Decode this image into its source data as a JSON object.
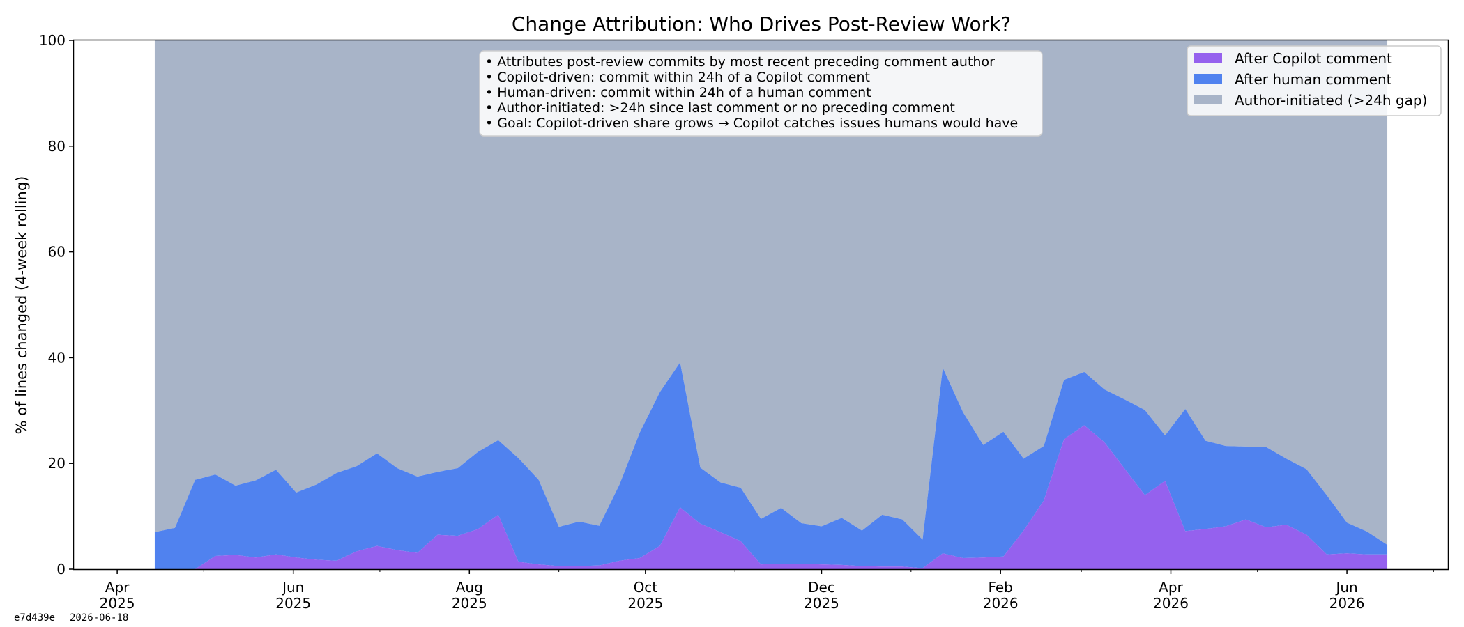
{
  "chart_data": {
    "type": "area",
    "stacked": true,
    "percent_stacked": true,
    "title": "Change Attribution: Who Drives Post-Review Work?",
    "xlabel": "",
    "ylabel": "% of lines changed (4-week rolling)",
    "ylim": [
      0,
      100
    ],
    "yticks": [
      0,
      20,
      40,
      60,
      80,
      100
    ],
    "xlim": [
      "2025-03-17",
      "2026-07-06"
    ],
    "xticks": [
      {
        "date": "2025-04-01",
        "month": "Apr",
        "year": "2025"
      },
      {
        "date": "2025-06-01",
        "month": "Jun",
        "year": "2025"
      },
      {
        "date": "2025-08-01",
        "month": "Aug",
        "year": "2025"
      },
      {
        "date": "2025-10-01",
        "month": "Oct",
        "year": "2025"
      },
      {
        "date": "2025-12-01",
        "month": "Dec",
        "year": "2025"
      },
      {
        "date": "2026-02-01",
        "month": "Feb",
        "year": "2026"
      },
      {
        "date": "2026-04-01",
        "month": "Apr",
        "year": "2026"
      },
      {
        "date": "2026-06-01",
        "month": "Jun",
        "year": "2026"
      }
    ],
    "x": [
      "2025-04-14",
      "2025-04-21",
      "2025-04-28",
      "2025-05-05",
      "2025-05-12",
      "2025-05-19",
      "2025-05-26",
      "2025-06-02",
      "2025-06-09",
      "2025-06-16",
      "2025-06-23",
      "2025-06-30",
      "2025-07-07",
      "2025-07-14",
      "2025-07-21",
      "2025-07-28",
      "2025-08-04",
      "2025-08-11",
      "2025-08-18",
      "2025-08-25",
      "2025-09-01",
      "2025-09-08",
      "2025-09-15",
      "2025-09-22",
      "2025-09-29",
      "2025-10-06",
      "2025-10-13",
      "2025-10-20",
      "2025-10-27",
      "2025-11-03",
      "2025-11-10",
      "2025-11-17",
      "2025-11-24",
      "2025-12-01",
      "2025-12-08",
      "2025-12-15",
      "2025-12-22",
      "2025-12-29",
      "2026-01-05",
      "2026-01-12",
      "2026-01-19",
      "2026-01-26",
      "2026-02-02",
      "2026-02-09",
      "2026-02-16",
      "2026-02-23",
      "2026-03-02",
      "2026-03-09",
      "2026-03-16",
      "2026-03-23",
      "2026-03-30",
      "2026-04-06",
      "2026-04-13",
      "2026-04-20",
      "2026-04-27",
      "2026-05-04",
      "2026-05-11",
      "2026-05-18",
      "2026-05-25",
      "2026-06-01",
      "2026-06-08",
      "2026-06-15"
    ],
    "series": [
      {
        "name": "After Copilot comment",
        "color": "#9561ee",
        "values": [
          0,
          0,
          0,
          2.5,
          2.7,
          2.2,
          2.8,
          2.2,
          1.8,
          1.6,
          3.4,
          4.4,
          3.6,
          3.1,
          6.5,
          6.3,
          7.6,
          10.3,
          1.4,
          0.9,
          0.6,
          0.6,
          0.7,
          1.6,
          2.1,
          4.4,
          11.7,
          8.6,
          7.0,
          5.3,
          0.9,
          1.0,
          1.0,
          0.9,
          0.8,
          0.6,
          0.5,
          0.5,
          0.2,
          3.0,
          2.1,
          2.2,
          2.4,
          7.3,
          13.0,
          24.6,
          27.2,
          24.0,
          19.0,
          14.0,
          16.7,
          7.2,
          7.6,
          8.1,
          9.4,
          7.9,
          8.4,
          6.5,
          2.8,
          3.0,
          2.8,
          2.8
        ]
      },
      {
        "name": "After human comment",
        "color": "#5082ef",
        "values": [
          7.0,
          7.8,
          16.9,
          15.4,
          13.1,
          14.6,
          16.0,
          12.3,
          14.2,
          16.6,
          16.1,
          17.5,
          15.5,
          14.4,
          11.9,
          12.8,
          14.6,
          14.1,
          19.6,
          16.0,
          7.4,
          8.4,
          7.5,
          14.4,
          23.7,
          29.1,
          27.4,
          10.6,
          9.4,
          10.1,
          8.6,
          10.6,
          7.7,
          7.2,
          8.9,
          6.7,
          9.8,
          8.9,
          5.4,
          35.1,
          27.6,
          21.3,
          23.6,
          13.6,
          10.3,
          11.2,
          10.1,
          10.0,
          13.1,
          16.1,
          8.6,
          23.1,
          16.7,
          15.2,
          13.8,
          15.2,
          12.5,
          12.4,
          11.2,
          5.8,
          4.3,
          1.8
        ]
      },
      {
        "name": "Author-initiated (>24h gap)",
        "color": "#a8b4c8"
      }
    ],
    "annotation_lines": [
      "• Attributes post-review commits by most recent preceding comment author",
      "• Copilot-driven: commit within 24h of a Copilot comment",
      "• Human-driven: commit within 24h of a human comment",
      "• Author-initiated: >24h since last comment or no preceding comment",
      "• Goal: Copilot-driven share grows → Copilot catches issues humans would have"
    ],
    "legend_position": "top-right",
    "grid": false
  },
  "footer": {
    "commit": "e7d439e",
    "date": "2026-06-18"
  }
}
